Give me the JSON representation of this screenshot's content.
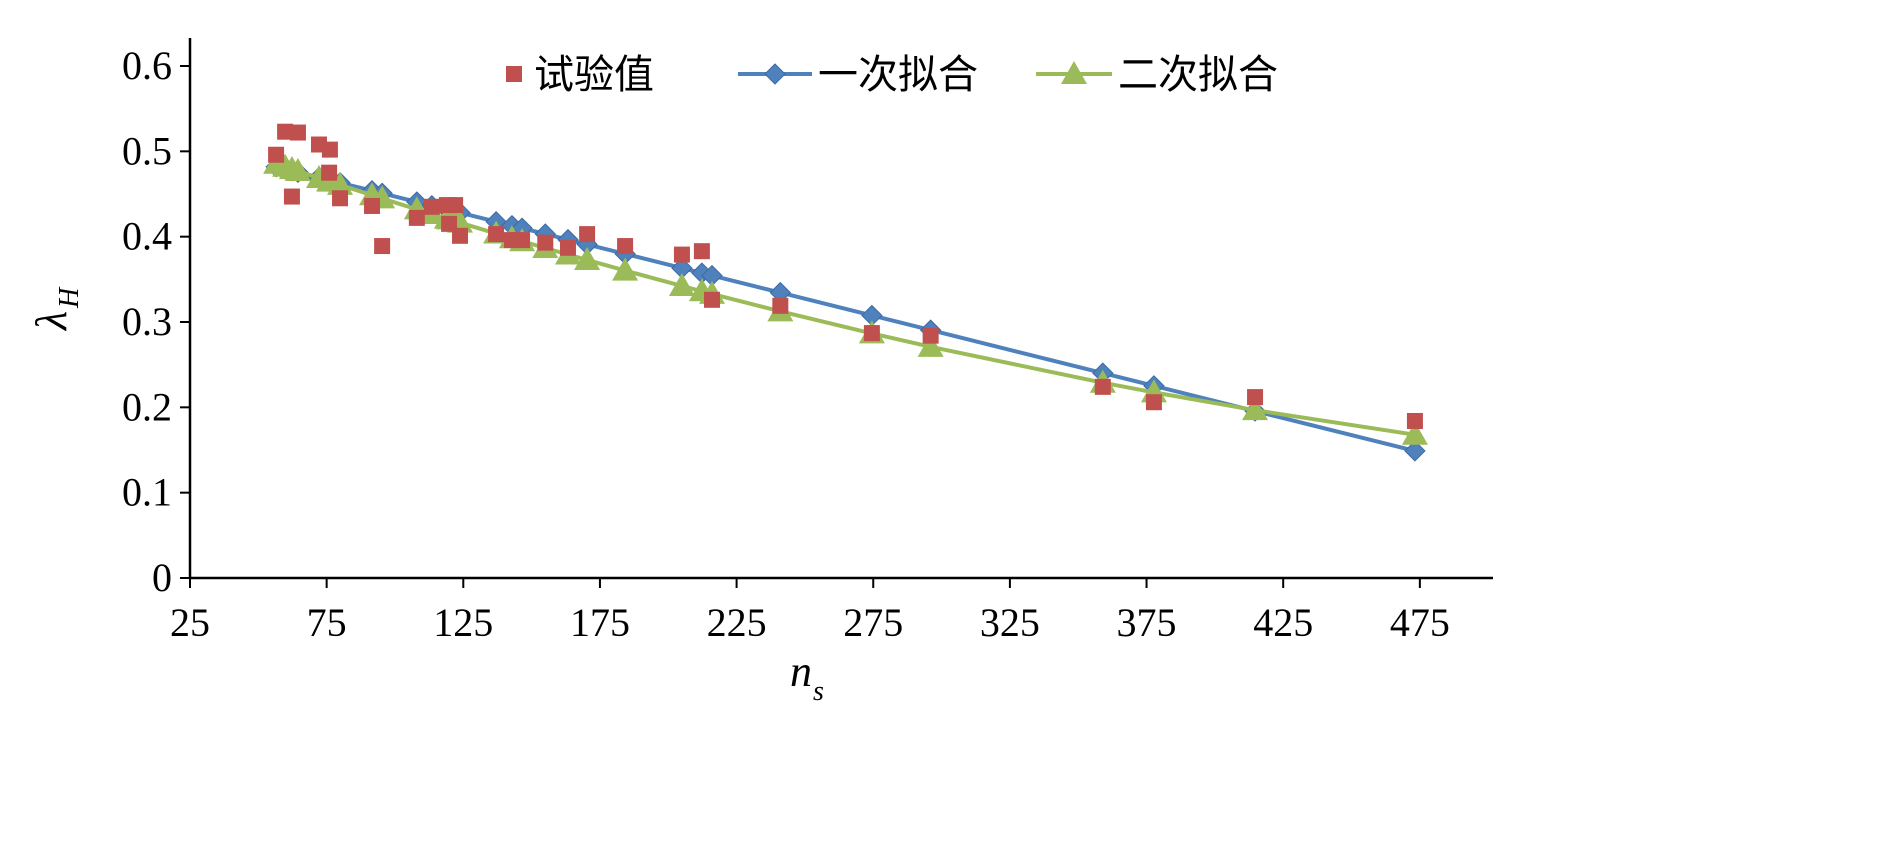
{
  "chart_data": {
    "type": "scatter",
    "xlabel": "n",
    "xlabel_sub": "s",
    "ylabel": "λ",
    "ylabel_sub": "H",
    "xlim": [
      25,
      502
    ],
    "ylim": [
      0,
      0.6
    ],
    "xticks": [
      25,
      75,
      125,
      175,
      225,
      275,
      325,
      375,
      425,
      475
    ],
    "yticks": [
      0,
      0.1,
      0.2,
      0.3,
      0.4,
      0.5,
      0.6
    ],
    "ytick_labels": [
      "0",
      "0.1",
      "0.2",
      "0.3",
      "0.4",
      "0.5",
      "0.6"
    ],
    "legend_position": "top",
    "colors": {
      "measured": "#c0504d",
      "linear": "#4f81bd",
      "quadratic": "#9bbb59"
    },
    "series": [
      {
        "name": "试验值",
        "kind": "scatter",
        "x": [
          56.5,
          59.8,
          64.5,
          62.3,
          72.2,
          76.2,
          75.9,
          79.9,
          91.6,
          95.3,
          108,
          113.5,
          119,
          122,
          119.8,
          123.8,
          137,
          142.8,
          146.5,
          155,
          163.3,
          170.3,
          184.2,
          205,
          212.3,
          216,
          241,
          274.5,
          296,
          359,
          377.7,
          414.7,
          473.2
        ],
        "y": [
          0.496,
          0.523,
          0.522,
          0.447,
          0.508,
          0.502,
          0.475,
          0.445,
          0.436,
          0.389,
          0.422,
          0.435,
          0.437,
          0.437,
          0.415,
          0.401,
          0.403,
          0.396,
          0.396,
          0.393,
          0.387,
          0.403,
          0.389,
          0.379,
          0.383,
          0.326,
          0.319,
          0.287,
          0.284,
          0.224,
          0.206,
          0.212,
          0.184
        ]
      },
      {
        "name": "一次拟合",
        "kind": "line",
        "coeffs": [
          0.527,
          -0.000799,
          0
        ]
      },
      {
        "name": "二次拟合",
        "kind": "line",
        "coeffs": [
          0.5487,
          -0.001162,
          7.55e-07
        ]
      }
    ]
  }
}
